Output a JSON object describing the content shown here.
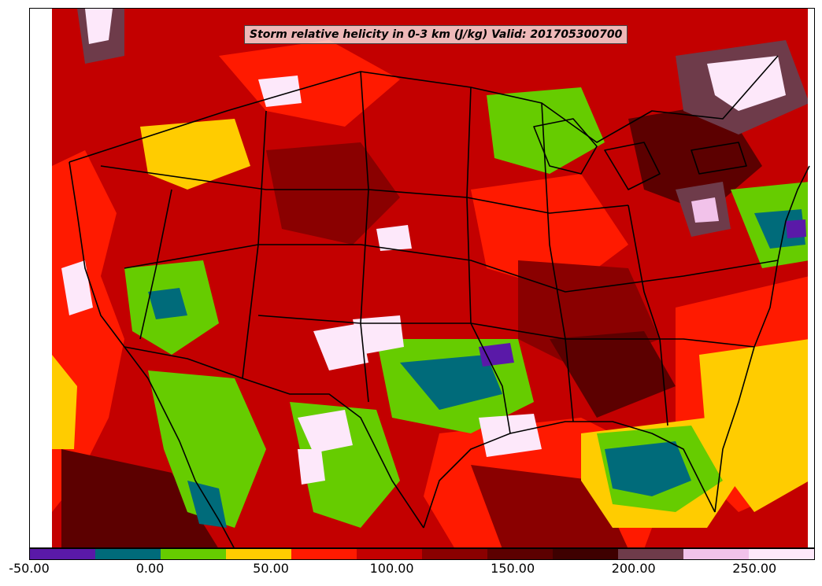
{
  "map": {
    "title": "Storm relative helicity in 0-3 km (J/kg) Valid: 201705300700",
    "region": "Continental United States, northern Mexico and southern Canada",
    "background_color": "#ffffff"
  },
  "legend": {
    "colors": [
      "#5a19a8",
      "#006b7a",
      "#66cc00",
      "#ffcc00",
      "#ff1a00",
      "#c30000",
      "#8a0000",
      "#5c0000",
      "#3e0000",
      "#6e3b4a",
      "#f2c2ea",
      "#fde8fa"
    ],
    "ticks": [
      {
        "label": "-50.00",
        "value": -50
      },
      {
        "label": "0.00",
        "value": 0
      },
      {
        "label": "50.00",
        "value": 50
      },
      {
        "label": "100.00",
        "value": 100
      },
      {
        "label": "150.00",
        "value": 150
      },
      {
        "label": "200.00",
        "value": 200
      },
      {
        "label": "250.00",
        "value": 250
      }
    ],
    "range": [
      -50,
      275
    ],
    "step": 25
  }
}
